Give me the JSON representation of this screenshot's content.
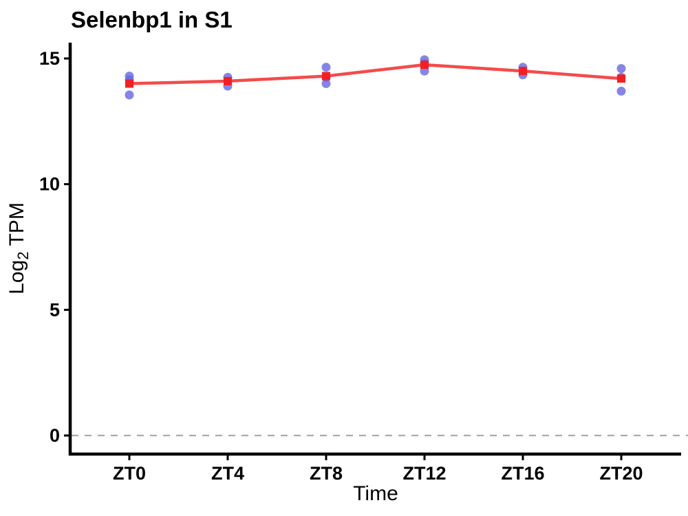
{
  "chart_data": {
    "type": "line",
    "title": "Selenbp1 in S1",
    "xlabel": "Time",
    "ylabel": {
      "prefix": "Log",
      "sub": "2",
      "suffix": "TPM"
    },
    "categories": [
      "ZT0",
      "ZT4",
      "ZT8",
      "ZT12",
      "ZT16",
      "ZT20"
    ],
    "series": [
      {
        "name": "replicate-points",
        "type": "scatter",
        "color": "#6666E0",
        "opacity": 0.8,
        "values_by_category": [
          [
            14.3,
            14.15,
            13.55
          ],
          [
            14.25,
            14.1,
            13.9
          ],
          [
            14.65,
            14.25,
            14.0
          ],
          [
            14.95,
            14.8,
            14.5
          ],
          [
            14.65,
            14.5,
            14.35
          ],
          [
            14.6,
            14.25,
            13.7
          ]
        ]
      },
      {
        "name": "mean",
        "type": "line-with-squares",
        "line_color": "#F34141",
        "marker_color": "#F22024",
        "values": [
          14.0,
          14.1,
          14.3,
          14.75,
          14.5,
          14.2
        ]
      }
    ],
    "yticks": [
      0,
      5,
      10,
      15
    ],
    "ylim": [
      -0.8,
      15.7
    ],
    "reference_line": {
      "y": 0,
      "style": "dashed",
      "color": "#ABABAB"
    },
    "grid": false,
    "legend": false,
    "axis_color": "#000000",
    "background": "#FFFFFF"
  }
}
